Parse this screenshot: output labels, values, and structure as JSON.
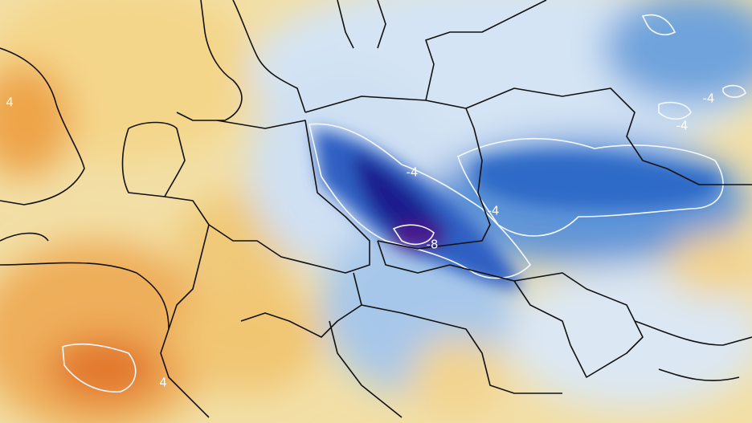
{
  "map": {
    "contour_labels": [
      "4",
      "-4",
      "-4",
      "-8",
      "-4",
      "-4",
      "4"
    ]
  }
}
